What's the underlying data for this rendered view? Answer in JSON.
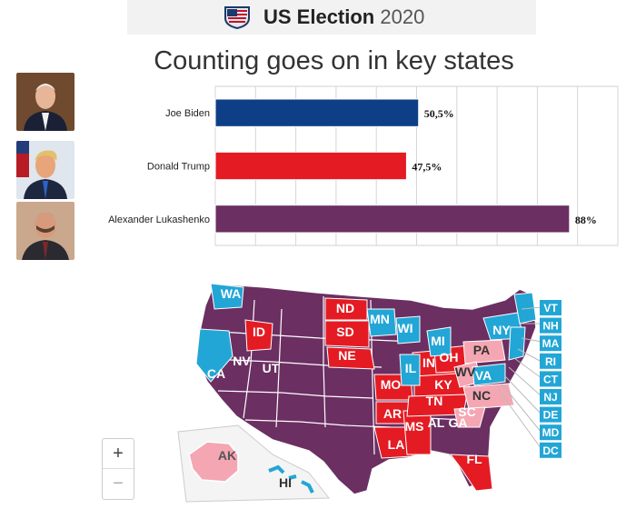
{
  "header": {
    "title_bold": "US Election",
    "title_year": "2020",
    "logo_icon": "us-flag-shield-icon"
  },
  "chart_data": {
    "type": "bar",
    "orientation": "horizontal",
    "title": "Counting goes on in key states",
    "categories": [
      "Joe Biden",
      "Donald Trump",
      "Alexander Lukashenko"
    ],
    "values": [
      50.5,
      47.5,
      88
    ],
    "value_labels": [
      "50,5%",
      "47,5%",
      "88%"
    ],
    "colors": [
      "#0e3f86",
      "#e41b23",
      "#6b2f62"
    ],
    "xlim": [
      0,
      100
    ],
    "grid": true,
    "legend": "none"
  },
  "candidates": [
    {
      "photo_icon": "biden-portrait-icon"
    },
    {
      "photo_icon": "trump-portrait-icon"
    },
    {
      "photo_icon": "lukashenko-portrait-icon"
    }
  ],
  "map": {
    "colors": {
      "purple": "#6b2f62",
      "red": "#e41b23",
      "pink": "#f5a6b3",
      "blue": "#22a6d6"
    },
    "state_labels": [
      "WA",
      "ID",
      "ND",
      "SD",
      "NE",
      "MN",
      "WI",
      "MI",
      "IL",
      "IN",
      "OH",
      "PA",
      "KY",
      "WV",
      "VA",
      "NC",
      "TN",
      "SC",
      "AR",
      "MO",
      "MS",
      "AL",
      "GA",
      "LA",
      "FL",
      "NY",
      "UT",
      "NV",
      "CA",
      "AK",
      "HI"
    ],
    "side_labels": [
      "VT",
      "NH",
      "MA",
      "RI",
      "CT",
      "NJ",
      "DE",
      "MD",
      "DC"
    ],
    "zoom": {
      "plus": "+",
      "minus": "−"
    }
  }
}
